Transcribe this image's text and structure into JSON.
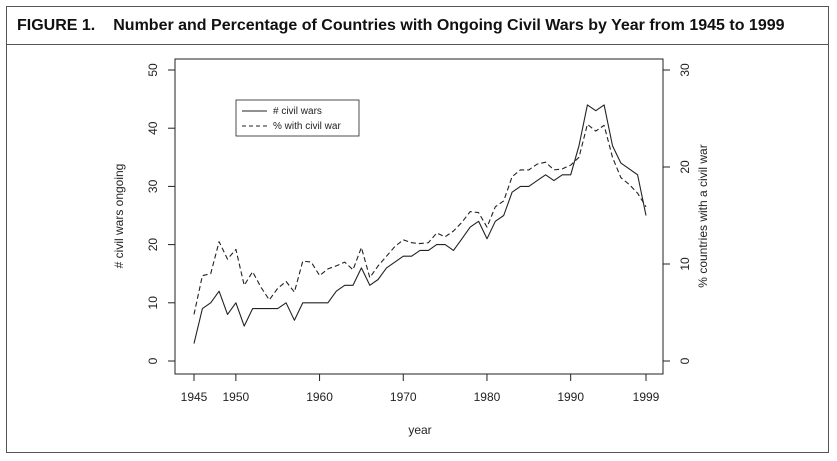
{
  "figure": {
    "label": "FIGURE 1.",
    "title": "Number and Percentage of Countries with Ongoing Civil Wars by Year from 1945 to 1999"
  },
  "chart_data": {
    "type": "line",
    "xlabel": "year",
    "ylabel": "# civil wars ongoing",
    "ylabel_right": "% countries with a civil war",
    "xlim": [
      1945,
      1999
    ],
    "ylim": [
      0,
      50
    ],
    "ylim_right": [
      0,
      30
    ],
    "x_ticks": [
      "1945",
      "1950",
      "1960",
      "1970",
      "1980",
      "1990",
      "1999"
    ],
    "x_tick_values": [
      1945,
      1950,
      1960,
      1970,
      1980,
      1990,
      1999
    ],
    "y_ticks": [
      "0",
      "10",
      "20",
      "30",
      "40",
      "50"
    ],
    "y_tick_values": [
      0,
      10,
      20,
      30,
      40,
      50
    ],
    "y_ticks_right": [
      "0",
      "10",
      "20",
      "30"
    ],
    "y_tick_values_right": [
      0,
      10,
      20,
      30
    ],
    "legend_position": "top-left",
    "grid": false,
    "x": [
      1945,
      1946,
      1947,
      1948,
      1949,
      1950,
      1951,
      1952,
      1953,
      1954,
      1955,
      1956,
      1957,
      1958,
      1959,
      1960,
      1961,
      1962,
      1963,
      1964,
      1965,
      1966,
      1967,
      1968,
      1969,
      1970,
      1971,
      1972,
      1973,
      1974,
      1975,
      1976,
      1977,
      1978,
      1979,
      1980,
      1981,
      1982,
      1983,
      1984,
      1985,
      1986,
      1987,
      1988,
      1989,
      1990,
      1991,
      1992,
      1993,
      1994,
      1995,
      1996,
      1997,
      1998,
      1999
    ],
    "series": [
      {
        "name": "# civil wars",
        "axis": "left",
        "style": "solid",
        "values": [
          3,
          9,
          10,
          12,
          8,
          10,
          6,
          9,
          9,
          9,
          9,
          10,
          7,
          10,
          10,
          10,
          10,
          12,
          13,
          13,
          16,
          13,
          14,
          16,
          17,
          18,
          18,
          19,
          19,
          20,
          20,
          19,
          21,
          23,
          24,
          21,
          24,
          25,
          29,
          30,
          30,
          31,
          32,
          31,
          32,
          32,
          37,
          44,
          43,
          44,
          37,
          34,
          33,
          32,
          25
        ]
      },
      {
        "name": "% with civil war",
        "axis": "right",
        "style": "dashed",
        "values": [
          4.8,
          8.8,
          9,
          12.3,
          10.5,
          11.5,
          7.8,
          9.2,
          7.6,
          6.3,
          7.5,
          8.2,
          7.1,
          10.3,
          10.2,
          8.8,
          9.5,
          9.8,
          10.2,
          9.4,
          11.7,
          8.6,
          9.8,
          10.8,
          11.8,
          12.5,
          12.2,
          12.1,
          12.2,
          13.2,
          12.8,
          13.4,
          14.3,
          15.4,
          15.3,
          13.8,
          15.9,
          16.5,
          19,
          19.7,
          19.7,
          20.3,
          20.5,
          19.7,
          19.8,
          20.2,
          21,
          24.4,
          23.7,
          24.3,
          21,
          18.9,
          18.2,
          17.3,
          15.9
        ]
      }
    ]
  }
}
